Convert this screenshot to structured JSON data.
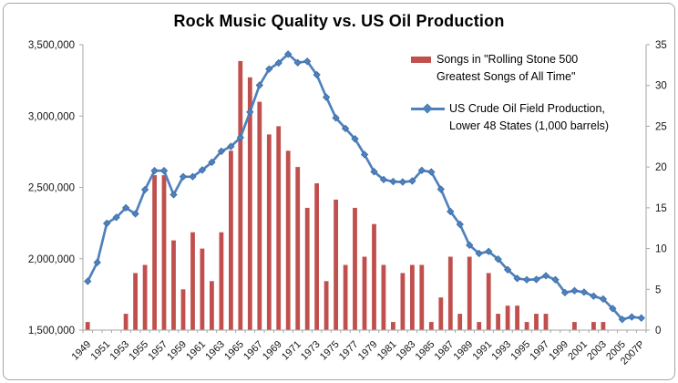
{
  "chart_data": {
    "type": "bar+line combo",
    "title": "Rock Music Quality vs. US Oil Production",
    "categories": [
      1949,
      1950,
      1951,
      1952,
      1953,
      1954,
      1955,
      1956,
      1957,
      1958,
      1959,
      1960,
      1961,
      1962,
      1963,
      1964,
      1965,
      1966,
      1967,
      1968,
      1969,
      1970,
      1971,
      1972,
      1973,
      1974,
      1975,
      1976,
      1977,
      1978,
      1979,
      1980,
      1981,
      1982,
      1983,
      1984,
      1985,
      1986,
      1987,
      1988,
      1989,
      1990,
      1991,
      1992,
      1993,
      1994,
      1995,
      1996,
      1997,
      1998,
      1999,
      2000,
      2001,
      2002,
      2003,
      2004,
      2005,
      2006,
      2007
    ],
    "x_tick_labels": [
      "1949",
      "1951",
      "1953",
      "1955",
      "1957",
      "1959",
      "1961",
      "1963",
      "1965",
      "1967",
      "1969",
      "1971",
      "1973",
      "1975",
      "1977",
      "1979",
      "1981",
      "1983",
      "1985",
      "1987",
      "1989",
      "1991",
      "1993",
      "1995",
      "1997",
      "1999",
      "2001",
      "2003",
      "2005",
      "2007P"
    ],
    "series": [
      {
        "name": "Songs in \"Rolling Stone 500 Greatest Songs of All Time\"",
        "type": "bar",
        "axis": "right",
        "color": "#c0504d",
        "values": [
          1,
          0,
          0,
          0,
          2,
          7,
          8,
          19,
          19,
          11,
          5,
          12,
          10,
          6,
          12,
          22,
          33,
          31,
          28,
          24,
          25,
          22,
          20,
          15,
          18,
          6,
          16,
          8,
          15,
          9,
          13,
          8,
          1,
          7,
          8,
          8,
          1,
          4,
          9,
          2,
          9,
          1,
          7,
          2,
          3,
          3,
          1,
          2,
          2,
          0,
          0,
          1,
          0,
          1,
          1,
          0,
          0,
          0,
          0
        ]
      },
      {
        "name": "US Crude Oil Field Production, Lower 48 States (1,000 barrels)",
        "type": "line",
        "axis": "left",
        "marker": "diamond",
        "color": "#4f81bd",
        "values": [
          1842000,
          1974000,
          2248000,
          2290000,
          2357000,
          2315000,
          2484000,
          2617000,
          2617000,
          2449000,
          2575000,
          2575000,
          2622000,
          2676000,
          2753000,
          2787000,
          2849000,
          3028000,
          3216000,
          3329000,
          3372000,
          3434000,
          3374000,
          3383000,
          3289000,
          3132000,
          2987000,
          2913000,
          2840000,
          2730000,
          2610000,
          2555000,
          2541000,
          2538000,
          2545000,
          2619000,
          2608000,
          2487000,
          2331000,
          2241000,
          2095000,
          2037000,
          2051000,
          1997000,
          1923000,
          1862000,
          1853000,
          1855000,
          1881000,
          1853000,
          1763000,
          1776000,
          1766000,
          1738000,
          1718000,
          1651000,
          1575000,
          1592000,
          1585000
        ]
      }
    ],
    "left_axis": {
      "min": 1500000,
      "max": 3500000,
      "step": 500000,
      "tick_labels": [
        "1,500,000",
        "2,000,000",
        "2,500,000",
        "3,000,000",
        "3,500,000"
      ]
    },
    "right_axis": {
      "min": 0,
      "max": 35,
      "step": 5,
      "tick_labels": [
        "0",
        "5",
        "10",
        "15",
        "20",
        "25",
        "30",
        "35"
      ]
    },
    "grid": "off",
    "legend": {
      "position": "top-right-inside",
      "entries": [
        {
          "line1": "Songs in \"Rolling Stone 500",
          "line2": "Greatest Songs of All Time\""
        },
        {
          "line1": "US Crude Oil Field Production,",
          "line2": "Lower 48 States (1,000 barrels)"
        }
      ]
    }
  }
}
